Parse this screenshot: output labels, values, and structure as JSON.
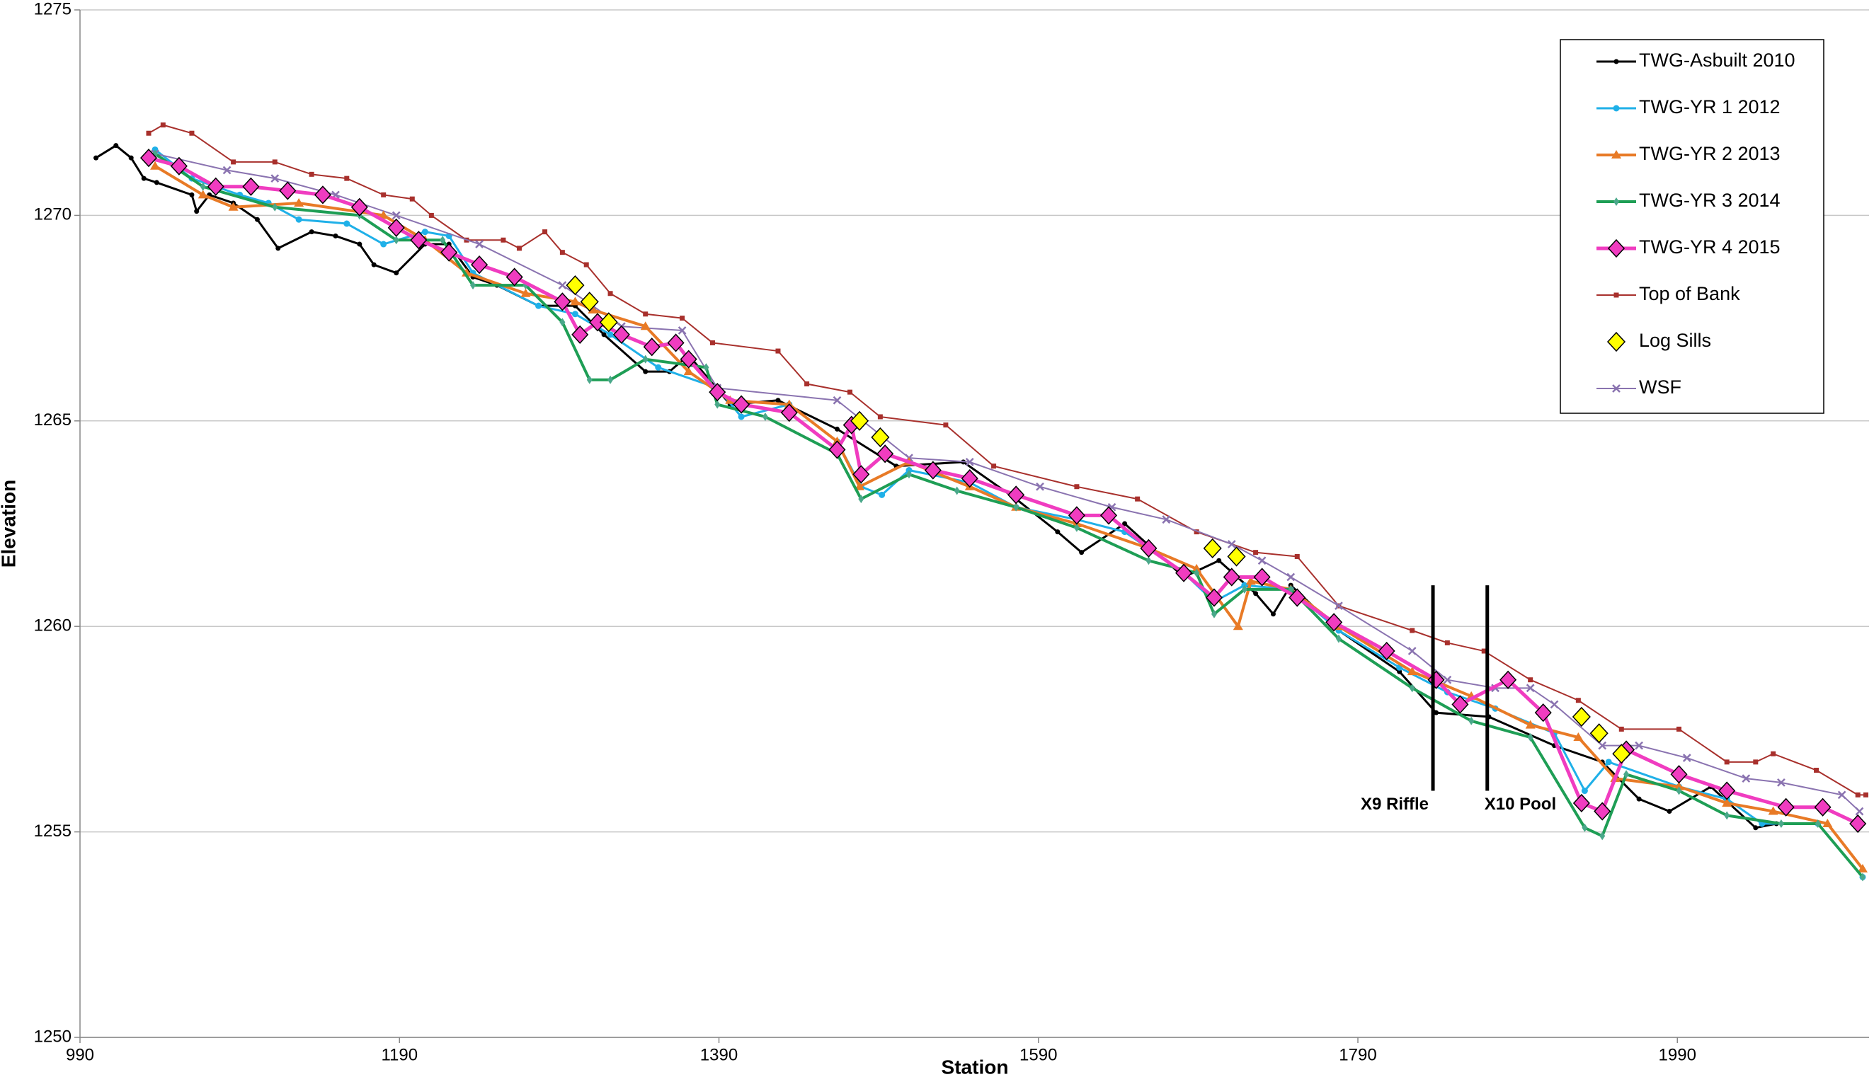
{
  "chart_data": {
    "type": "line",
    "x_label": "Station",
    "y_label": "Elevation",
    "xlim": [
      990,
      2110
    ],
    "xticks": [
      990,
      1190,
      1390,
      1590,
      1790,
      1990
    ],
    "ylim": [
      1250,
      1275
    ],
    "yticks": [
      1250,
      1255,
      1260,
      1265,
      1270,
      1275
    ],
    "grid": true,
    "legend": "upper right",
    "series": [
      {
        "name": "TWG-Asbuilt 2010",
        "color": "#000000",
        "marker": "circle",
        "line": true,
        "x": [
          1000,
          1012.5,
          1022,
          1030,
          1038,
          1060,
          1063,
          1071,
          1086,
          1101,
          1114,
          1135,
          1150,
          1165,
          1174,
          1188,
          1206,
          1221,
          1236,
          1251,
          1277,
          1300,
          1318,
          1344,
          1359,
          1371,
          1397,
          1427,
          1464,
          1501,
          1543,
          1576,
          1602,
          1617,
          1644,
          1681,
          1703,
          1726,
          1737,
          1748,
          1778,
          1816,
          1839,
          1872,
          1913,
          1943,
          1966,
          1985,
          2011,
          2039,
          2052
        ],
        "values": [
          1271.4,
          1271.7,
          1271.4,
          1270.9,
          1270.8,
          1270.5,
          1270.1,
          1270.5,
          1270.3,
          1269.9,
          1269.2,
          1269.6,
          1269.5,
          1269.3,
          1268.8,
          1268.6,
          1269.3,
          1269.3,
          1268.5,
          1268.3,
          1267.8,
          1267.8,
          1267.1,
          1266.2,
          1266.2,
          1266.6,
          1265.4,
          1265.5,
          1264.8,
          1263.9,
          1264.0,
          1263.1,
          1262.3,
          1261.8,
          1262.5,
          1261.2,
          1261.6,
          1260.8,
          1260.3,
          1261.0,
          1259.9,
          1258.9,
          1257.9,
          1257.8,
          1257.1,
          1256.7,
          1255.8,
          1255.5,
          1256.1,
          1255.1,
          1255.2
        ]
      },
      {
        "name": "TWG-YR 1 2012",
        "color": "#1fb0e8",
        "marker": "circle",
        "line": true,
        "x": [
          1037,
          1060,
          1090,
          1108,
          1127,
          1157,
          1180,
          1206,
          1221,
          1236,
          1277,
          1300,
          1322,
          1352,
          1389,
          1404,
          1434,
          1464,
          1479,
          1492,
          1509,
          1547,
          1576,
          1614,
          1644,
          1681,
          1700,
          1719,
          1748,
          1778,
          1816,
          1846,
          1876,
          1913,
          1932,
          1947,
          1991,
          2021,
          2043,
          2078,
          2106
        ],
        "values": [
          1271.6,
          1270.9,
          1270.5,
          1270.3,
          1269.9,
          1269.8,
          1269.3,
          1269.6,
          1269.5,
          1268.6,
          1267.8,
          1267.6,
          1267.1,
          1266.3,
          1265.8,
          1265.1,
          1265.4,
          1264.5,
          1263.4,
          1263.2,
          1263.8,
          1263.5,
          1262.9,
          1262.6,
          1262.3,
          1261.3,
          1260.6,
          1261.0,
          1260.9,
          1259.9,
          1259.0,
          1258.4,
          1258.0,
          1257.4,
          1256.0,
          1256.7,
          1256.1,
          1255.8,
          1255.2,
          1255.2,
          1253.9
        ]
      },
      {
        "name": "TWG-YR 2 2013",
        "color": "#e87a26",
        "marker": "triangle",
        "line": true,
        "x": [
          1037,
          1067,
          1086,
          1127,
          1180,
          1206,
          1232,
          1269,
          1300,
          1311,
          1344,
          1371,
          1397,
          1434,
          1464,
          1478,
          1509,
          1547,
          1576,
          1614,
          1659,
          1689,
          1715,
          1723,
          1748,
          1778,
          1824,
          1861,
          1898,
          1928,
          1951,
          1991,
          2021,
          2050,
          2084,
          2106
        ],
        "values": [
          1271.2,
          1270.5,
          1270.2,
          1270.3,
          1270.0,
          1269.4,
          1268.6,
          1268.1,
          1267.9,
          1267.7,
          1267.3,
          1266.2,
          1265.5,
          1265.4,
          1264.5,
          1263.4,
          1264.0,
          1263.4,
          1262.9,
          1262.5,
          1261.9,
          1261.4,
          1260.0,
          1261.1,
          1260.9,
          1260.0,
          1258.9,
          1258.3,
          1257.6,
          1257.3,
          1256.3,
          1256.1,
          1255.7,
          1255.5,
          1255.2,
          1254.1
        ]
      },
      {
        "name": "TWG-YR 3 2014",
        "color": "#1e9e55",
        "marker": "star",
        "line": true,
        "x": [
          1037,
          1067,
          1112,
          1165,
          1188,
          1217,
          1236,
          1269,
          1292,
          1309,
          1322,
          1344,
          1382,
          1389,
          1419,
          1464,
          1479,
          1509,
          1539,
          1576,
          1614,
          1659,
          1689,
          1700,
          1719,
          1748,
          1778,
          1824,
          1861,
          1898,
          1932,
          1943,
          1958,
          1991,
          2021,
          2055,
          2078,
          2106
        ],
        "values": [
          1271.5,
          1270.7,
          1270.2,
          1270.0,
          1269.4,
          1269.4,
          1268.3,
          1268.3,
          1267.4,
          1266.0,
          1266.0,
          1266.5,
          1266.3,
          1265.4,
          1265.1,
          1264.2,
          1263.1,
          1263.7,
          1263.3,
          1262.9,
          1262.4,
          1261.6,
          1261.3,
          1260.3,
          1260.9,
          1260.9,
          1259.7,
          1258.5,
          1257.7,
          1257.3,
          1255.1,
          1254.9,
          1256.4,
          1256.0,
          1255.4,
          1255.2,
          1255.2,
          1253.9
        ]
      },
      {
        "name": "TWG-YR 4 2015",
        "color": "#f03cc0",
        "marker": "diamond",
        "line": true,
        "x": [
          1033,
          1052,
          1075,
          1097,
          1120,
          1142,
          1165,
          1188,
          1202,
          1221,
          1240,
          1262,
          1292,
          1303,
          1314,
          1329,
          1348,
          1363,
          1371,
          1389,
          1404,
          1434,
          1464,
          1473,
          1479,
          1494,
          1524,
          1547,
          1576,
          1614,
          1634,
          1659,
          1681,
          1700,
          1711,
          1730,
          1752,
          1775,
          1808,
          1839,
          1854,
          1884,
          1906,
          1930,
          1943,
          1958,
          1991,
          2021,
          2058,
          2081,
          2103
        ],
        "values": [
          1271.4,
          1271.2,
          1270.7,
          1270.7,
          1270.6,
          1270.5,
          1270.2,
          1269.7,
          1269.4,
          1269.1,
          1268.8,
          1268.5,
          1267.9,
          1267.1,
          1267.4,
          1267.1,
          1266.8,
          1266.9,
          1266.5,
          1265.7,
          1265.4,
          1265.2,
          1264.3,
          1264.9,
          1263.7,
          1264.2,
          1263.8,
          1263.6,
          1263.2,
          1262.7,
          1262.7,
          1261.9,
          1261.3,
          1260.7,
          1261.2,
          1261.2,
          1260.7,
          1260.1,
          1259.4,
          1258.7,
          1258.1,
          1258.7,
          1257.9,
          1255.7,
          1255.5,
          1257.0,
          1256.4,
          1256.0,
          1255.6,
          1255.6,
          1255.2
        ]
      },
      {
        "name": "Top of Bank",
        "color": "#a8302c",
        "marker": "square",
        "line": true,
        "x": [
          1033,
          1042,
          1060,
          1086,
          1112,
          1135,
          1157,
          1180,
          1198,
          1210,
          1232,
          1255,
          1265,
          1281,
          1292,
          1307,
          1322,
          1344,
          1367,
          1386,
          1427,
          1445,
          1472,
          1491,
          1532,
          1562,
          1614,
          1652,
          1689,
          1726,
          1752,
          1778,
          1824,
          1846,
          1869,
          1898,
          1928,
          1955,
          1991,
          2021,
          2039,
          2050,
          2077,
          2103,
          2108
        ],
        "values": [
          1272.0,
          1272.2,
          1272.0,
          1271.3,
          1271.3,
          1271.0,
          1270.9,
          1270.5,
          1270.4,
          1270.0,
          1269.4,
          1269.4,
          1269.2,
          1269.6,
          1269.1,
          1268.8,
          1268.1,
          1267.6,
          1267.5,
          1266.9,
          1266.7,
          1265.9,
          1265.7,
          1265.1,
          1264.9,
          1263.9,
          1263.4,
          1263.1,
          1262.3,
          1261.8,
          1261.7,
          1260.5,
          1259.9,
          1259.6,
          1259.4,
          1258.7,
          1258.2,
          1257.5,
          1257.5,
          1256.7,
          1256.7,
          1256.9,
          1256.5,
          1255.9,
          1255.9
        ]
      },
      {
        "name": "Log Sills",
        "color": "#ffff00",
        "marker": "sill",
        "line": false,
        "x": [
          1300,
          1309,
          1321,
          1478,
          1491,
          1699,
          1714,
          1930,
          1941,
          1955
        ],
        "values": [
          1268.3,
          1267.9,
          1267.4,
          1265.0,
          1264.6,
          1261.9,
          1261.7,
          1257.8,
          1257.4,
          1256.9
        ]
      },
      {
        "name": "WSF",
        "color": "#8a73b0",
        "marker": "x",
        "line": true,
        "x": [
          1037,
          1082,
          1112,
          1150,
          1188,
          1240,
          1292,
          1311,
          1329,
          1367,
          1389,
          1464,
          1509,
          1547,
          1591,
          1636,
          1670,
          1711,
          1730,
          1748,
          1778,
          1824,
          1846,
          1876,
          1898,
          1913,
          1943,
          1966,
          1996,
          2033,
          2055,
          2093,
          2104
        ],
        "values": [
          1271.5,
          1271.1,
          1270.9,
          1270.5,
          1270.0,
          1269.3,
          1268.3,
          1267.8,
          1267.3,
          1267.2,
          1265.8,
          1265.5,
          1264.1,
          1264.0,
          1263.4,
          1262.9,
          1262.6,
          1262.0,
          1261.6,
          1261.2,
          1260.5,
          1259.4,
          1258.7,
          1258.5,
          1258.5,
          1258.1,
          1257.1,
          1257.1,
          1256.8,
          1256.3,
          1256.2,
          1255.9,
          1255.5
        ]
      }
    ],
    "annotations": [
      {
        "text": "X9 Riffle",
        "x": 1837,
        "y": [
          1256,
          1261
        ]
      },
      {
        "text": "X10 Pool",
        "x": 1871,
        "y": [
          1256,
          1261
        ]
      }
    ]
  }
}
